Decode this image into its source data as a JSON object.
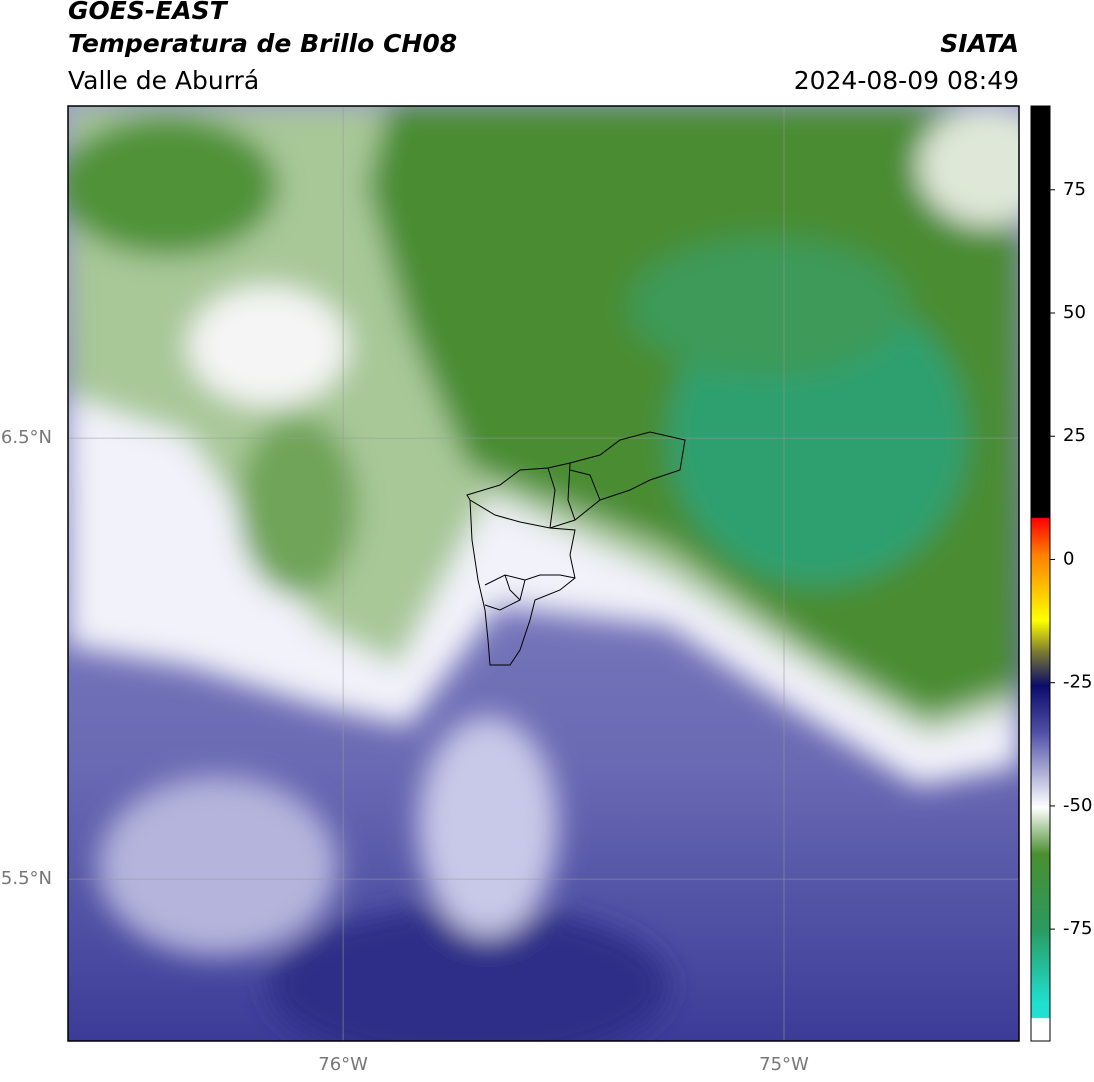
{
  "header": {
    "title": "GOES-EAST",
    "subtitle": "Temperatura de Brillo CH08",
    "region": "Valle de Aburrá",
    "agency": "SIATA",
    "timestamp": "2024-08-09 08:49"
  },
  "map": {
    "type": "map",
    "xlim": [
      -76.624,
      -74.467
    ],
    "ylim": [
      5.133,
      7.253
    ],
    "xticks": [
      {
        "value": -76,
        "label": "76°W"
      },
      {
        "value": -75,
        "label": "75°W"
      }
    ],
    "yticks": [
      {
        "value": 6.5,
        "label": "6.5°N"
      },
      {
        "value": 5.5,
        "label": "5.5°N"
      }
    ],
    "grid": true
  },
  "colorbar": {
    "lim": [
      -97.7,
      92
    ],
    "ticks": [
      75,
      50,
      25,
      0,
      -25,
      -50,
      -75
    ]
  }
}
